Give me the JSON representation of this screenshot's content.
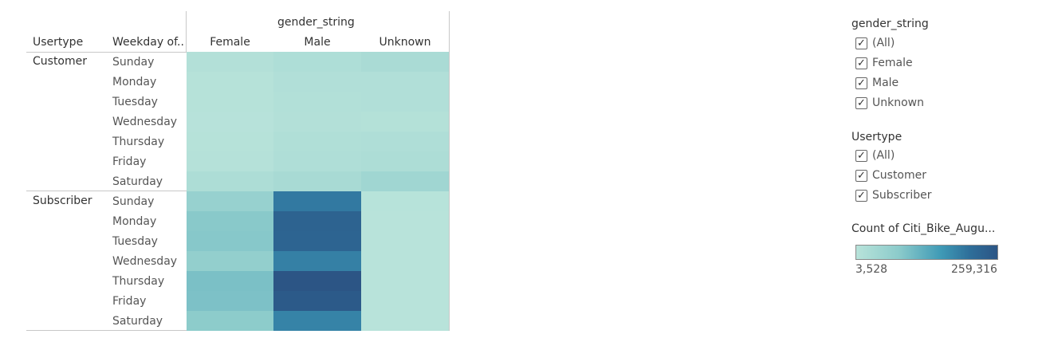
{
  "chart_data": {
    "type": "heatmap",
    "column_group_title": "gender_string",
    "row_headers": [
      "Usertype",
      "Weekday of.."
    ],
    "columns": [
      "Female",
      "Male",
      "Unknown"
    ],
    "row_groups": [
      {
        "name": "Customer",
        "rows": [
          "Sunday",
          "Monday",
          "Tuesday",
          "Wednesday",
          "Thursday",
          "Friday",
          "Saturday"
        ]
      },
      {
        "name": "Subscriber",
        "rows": [
          "Sunday",
          "Monday",
          "Tuesday",
          "Wednesday",
          "Thursday",
          "Friday",
          "Saturday"
        ]
      }
    ],
    "values": [
      [
        11000,
        18000,
        24000
      ],
      [
        7000,
        13000,
        14000
      ],
      [
        6000,
        12000,
        13000
      ],
      [
        5500,
        11000,
        10000
      ],
      [
        6500,
        15000,
        16000
      ],
      [
        8000,
        17000,
        19000
      ],
      [
        20000,
        27000,
        38000
      ],
      [
        52000,
        180000,
        4500
      ],
      [
        70000,
        225000,
        3800
      ],
      [
        72000,
        222000,
        3700
      ],
      [
        58000,
        170000,
        3700
      ],
      [
        82000,
        259316,
        3600
      ],
      [
        80000,
        248000,
        3528
      ],
      [
        66000,
        165000,
        3900
      ]
    ],
    "color_scale": {
      "title": "Count of Citi_Bike_Augu...",
      "min": 3528,
      "max": 259316,
      "min_label": "3,528",
      "max_label": "259,316",
      "colors": [
        "#b8e3da",
        "#8ccbcb",
        "#3f9ab6",
        "#2e6f9a",
        "#2c5585"
      ]
    }
  },
  "filters": [
    {
      "title": "gender_string",
      "items": [
        "(All)",
        "Female",
        "Male",
        "Unknown"
      ]
    },
    {
      "title": "Usertype",
      "items": [
        "(All)",
        "Customer",
        "Subscriber"
      ]
    }
  ],
  "checkmark": "✓"
}
